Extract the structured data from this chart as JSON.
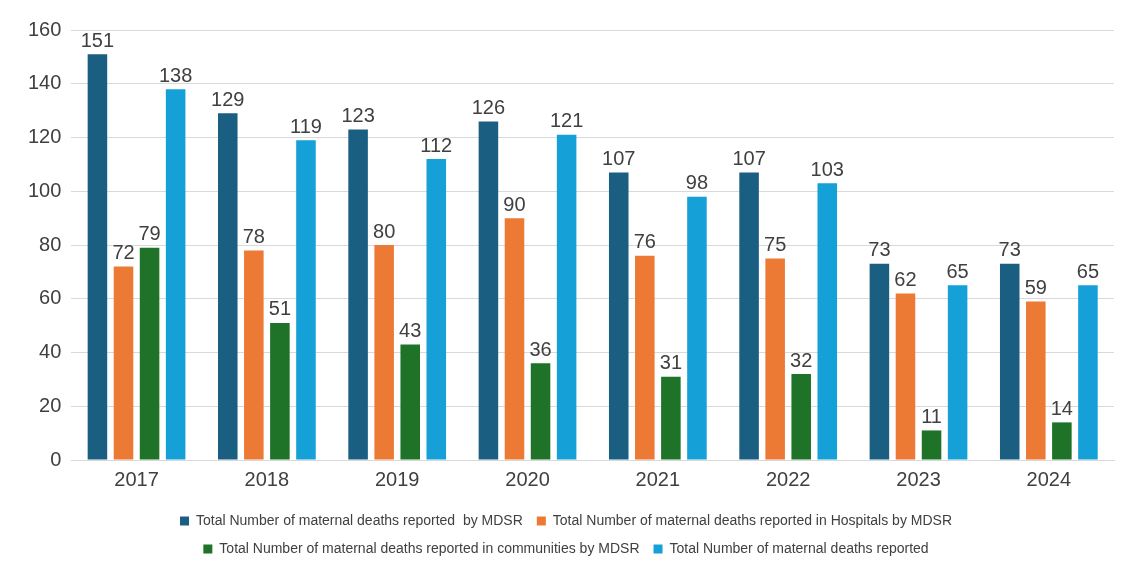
{
  "chart_data": {
    "type": "bar",
    "categories": [
      "2017",
      "2018",
      "2019",
      "2020",
      "2021",
      "2022",
      "2023",
      "2024"
    ],
    "series": [
      {
        "name": "Total Number of maternal deaths reported  by MDSR",
        "color": "#1a5e82",
        "values": [
          151,
          129,
          123,
          126,
          107,
          107,
          73,
          73
        ]
      },
      {
        "name": "Total Number of maternal deaths reported in Hospitals by MDSR",
        "color": "#ec7a35",
        "values": [
          72,
          78,
          80,
          90,
          76,
          75,
          62,
          59
        ]
      },
      {
        "name": "Total Number of maternal deaths reported in communities by MDSR",
        "color": "#1e7328",
        "values": [
          79,
          51,
          43,
          36,
          31,
          32,
          11,
          14
        ]
      },
      {
        "name": "Total Number of maternal deaths reported",
        "color": "#15a0d8",
        "values": [
          138,
          119,
          112,
          121,
          98,
          103,
          65,
          65
        ]
      }
    ],
    "ylim": [
      0,
      160
    ],
    "yticks": [
      0,
      20,
      40,
      60,
      80,
      100,
      120,
      140,
      160
    ],
    "grid": "y",
    "legend": "bottom",
    "data_labels": true
  }
}
